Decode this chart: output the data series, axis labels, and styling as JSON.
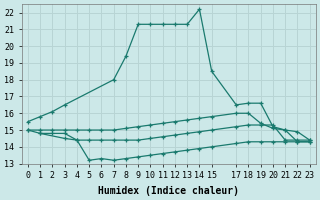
{
  "xlabel": "Humidex (Indice chaleur)",
  "background_color": "#cce8e8",
  "grid_color": "#b8d4d4",
  "line_color": "#1a7a6e",
  "xlim": [
    -0.5,
    23.5
  ],
  "ylim": [
    13,
    22.5
  ],
  "xtick_positions": [
    0,
    1,
    2,
    3,
    4,
    5,
    6,
    7,
    8,
    9,
    10,
    11,
    12,
    13,
    14,
    15,
    17,
    18,
    19,
    20,
    21,
    22,
    23
  ],
  "xtick_labels": [
    "0",
    "1",
    "2",
    "3",
    "4",
    "5",
    "6",
    "7",
    "8",
    "9",
    "10",
    "11",
    "12",
    "13",
    "14",
    "15",
    "17",
    "18",
    "19",
    "20",
    "21",
    "22",
    "23"
  ],
  "yticks": [
    13,
    14,
    15,
    16,
    17,
    18,
    19,
    20,
    21,
    22
  ],
  "series1_x": [
    0,
    1,
    2,
    3,
    7,
    8,
    9,
    10,
    11,
    12,
    13,
    14,
    15,
    17,
    18,
    19,
    20,
    21,
    22,
    23
  ],
  "series1_y": [
    15.5,
    15.8,
    16.1,
    16.5,
    18.0,
    19.4,
    21.3,
    21.3,
    21.3,
    21.3,
    21.3,
    22.2,
    18.5,
    16.5,
    16.6,
    16.6,
    15.2,
    15.0,
    14.3,
    14.3
  ],
  "series2_x": [
    0,
    1,
    2,
    3,
    4,
    5,
    6,
    7,
    8,
    9,
    10,
    11,
    12,
    13,
    14,
    15,
    17,
    18,
    19,
    20,
    21,
    22,
    23
  ],
  "series2_y": [
    15.0,
    15.0,
    15.0,
    15.0,
    15.0,
    15.0,
    15.0,
    15.0,
    15.1,
    15.2,
    15.3,
    15.4,
    15.5,
    15.6,
    15.7,
    15.8,
    16.0,
    16.0,
    15.4,
    15.1,
    15.0,
    14.9,
    14.4
  ],
  "series3_x": [
    0,
    1,
    2,
    3,
    4,
    5,
    6,
    7,
    8,
    9,
    10,
    11,
    12,
    13,
    14,
    15,
    17,
    18,
    19,
    20,
    21,
    22,
    23
  ],
  "series3_y": [
    15.0,
    14.8,
    14.8,
    14.8,
    14.4,
    14.4,
    14.4,
    14.4,
    14.4,
    14.4,
    14.5,
    14.6,
    14.7,
    14.8,
    14.9,
    15.0,
    15.2,
    15.3,
    15.3,
    15.3,
    14.4,
    14.4,
    14.4
  ],
  "series4_x": [
    1,
    3,
    4,
    5,
    6,
    7,
    8,
    9,
    10,
    11,
    12,
    13,
    14,
    15,
    17,
    18,
    19,
    20,
    21,
    22,
    23
  ],
  "series4_y": [
    14.8,
    14.5,
    14.4,
    13.2,
    13.3,
    13.2,
    13.3,
    13.4,
    13.5,
    13.6,
    13.7,
    13.8,
    13.9,
    14.0,
    14.2,
    14.3,
    14.3,
    14.3,
    14.3,
    14.3,
    14.3
  ],
  "font_size": 6.0
}
